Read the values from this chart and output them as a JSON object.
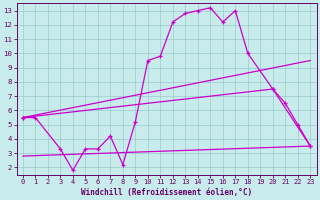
{
  "background_color": "#c8ecec",
  "grid_color": "#99cccc",
  "line_color": "#cc00cc",
  "xlabel": "Windchill (Refroidissement éolien,°C)",
  "xlim": [
    -0.5,
    23.5
  ],
  "ylim": [
    1.5,
    13.5
  ],
  "xticks": [
    0,
    1,
    2,
    3,
    4,
    5,
    6,
    7,
    8,
    9,
    10,
    11,
    12,
    13,
    14,
    15,
    16,
    17,
    18,
    19,
    20,
    21,
    22,
    23
  ],
  "yticks": [
    2,
    3,
    4,
    5,
    6,
    7,
    8,
    9,
    10,
    11,
    12,
    13
  ],
  "line1_x": [
    0,
    1,
    3,
    4,
    5,
    6,
    7,
    8,
    9,
    10,
    11,
    12,
    13,
    14,
    15,
    16,
    17,
    18,
    20,
    21,
    22,
    23
  ],
  "line1_y": [
    5.5,
    5.5,
    3.3,
    1.8,
    3.3,
    3.3,
    4.2,
    2.2,
    5.2,
    9.5,
    9.8,
    12.2,
    12.8,
    13.0,
    13.2,
    12.2,
    13.0,
    10.0,
    7.5,
    6.5,
    5.0,
    3.5
  ],
  "line2_x": [
    0,
    23
  ],
  "line2_y": [
    5.5,
    9.5
  ],
  "line3_x": [
    0,
    20,
    23
  ],
  "line3_y": [
    5.5,
    7.5,
    3.5
  ],
  "line4_x": [
    0,
    23
  ],
  "line4_y": [
    2.8,
    3.5
  ],
  "tick_color": "#660066",
  "label_fontsize": 5.0,
  "xlabel_fontsize": 5.5,
  "linewidth": 0.9,
  "markersize": 3.5,
  "markeredgewidth": 0.9
}
